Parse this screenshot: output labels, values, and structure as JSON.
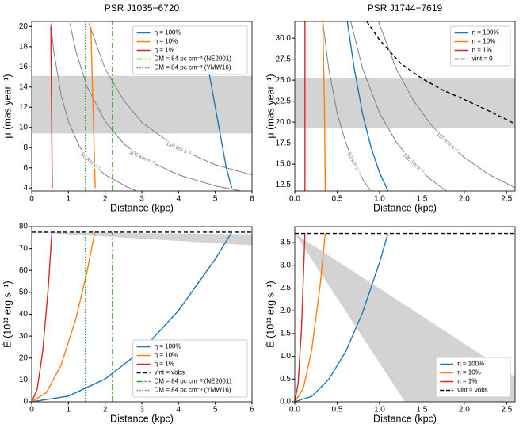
{
  "chart_data": [
    {
      "type": "line",
      "title": "PSR J1035−6720",
      "xlabel": "Distance (kpc)",
      "ylabel": "μ (mas year⁻¹)",
      "xlim": [
        0,
        6
      ],
      "ylim": [
        3.7,
        20.5
      ],
      "xticks": [
        0,
        1,
        2,
        3,
        4,
        5,
        6
      ],
      "yticks": [
        4,
        6,
        8,
        10,
        12,
        14,
        16,
        18,
        20
      ],
      "legend": "upper right",
      "band": [
        9.4,
        15.1
      ],
      "series": [
        {
          "name": "η = 100%",
          "color": "#1f77b4",
          "dash": "solid",
          "x": [
            5.45,
            5.3,
            5.15,
            5.0,
            4.85,
            4.6
          ],
          "values": [
            4,
            6,
            9,
            12,
            15,
            20
          ]
        },
        {
          "name": "η = 10%",
          "color": "#ff7f0e",
          "dash": "solid",
          "x": [
            1.73,
            1.7,
            1.67,
            1.64,
            1.61
          ],
          "values": [
            4,
            8,
            12,
            16,
            20
          ]
        },
        {
          "name": "η = 1%",
          "color": "#d62728",
          "dash": "solid",
          "x": [
            0.56,
            0.55,
            0.54,
            0.53,
            0.52
          ],
          "values": [
            4,
            8,
            12,
            16,
            20
          ]
        },
        {
          "name": "DM = 84 pc cm⁻³ (NE2001)",
          "color": "#2ca02c",
          "dash": "dashdot",
          "x": [
            2.2,
            2.2
          ],
          "values": [
            3.7,
            20.5
          ]
        },
        {
          "name": "DM = 84 pc cm⁻³ (YMW16)",
          "color": "#2ca02c",
          "dash": "dotted",
          "x": [
            1.46,
            1.46
          ],
          "values": [
            3.7,
            20.5
          ]
        }
      ],
      "contours": [
        {
          "label": "50 km s⁻¹",
          "x": [
            0.52,
            0.6,
            0.8,
            1.0,
            1.3,
            1.6,
            2.0,
            2.6,
            2.85
          ],
          "values": [
            20.3,
            17.6,
            13.2,
            10.6,
            8.1,
            6.6,
            5.3,
            4.1,
            3.7
          ]
        },
        {
          "label": "100 km s⁻¹",
          "x": [
            1.04,
            1.2,
            1.5,
            2,
            2.5,
            3,
            4,
            5,
            5.7
          ],
          "values": [
            20.3,
            17.6,
            14.1,
            10.6,
            8.4,
            7.0,
            5.3,
            4.2,
            3.7
          ]
        },
        {
          "label": "150 km s⁻¹",
          "x": [
            1.56,
            2,
            2.5,
            3,
            4,
            5,
            6
          ],
          "values": [
            20.3,
            15.8,
            12.7,
            10.5,
            7.9,
            6.3,
            5.3
          ]
        }
      ]
    },
    {
      "type": "line",
      "title": "PSR J1744−7619",
      "xlabel": "Distance (kpc)",
      "ylabel": "μ (mas year⁻¹)",
      "xlim": [
        0,
        2.6
      ],
      "ylim": [
        11.8,
        32
      ],
      "xticks": [
        {
          "value": 0,
          "label": "0.0"
        },
        0.5,
        {
          "value": 1,
          "label": "1.0"
        },
        1.5,
        {
          "value": 2,
          "label": "2.0"
        },
        2.5
      ],
      "yticks": [
        12.5,
        {
          "value": 15,
          "label": "15.0"
        },
        17.5,
        {
          "value": 20,
          "label": "20.0"
        },
        22.5,
        {
          "value": 25,
          "label": "25.0"
        },
        27.5,
        {
          "value": 30,
          "label": "30.0"
        }
      ],
      "legend": "upper right",
      "band": [
        19.3,
        25.2
      ],
      "series": [
        {
          "name": "η = 100%",
          "color": "#1f77b4",
          "dash": "solid",
          "x": [
            0.62,
            0.7,
            0.8,
            0.9,
            1.0,
            1.1
          ],
          "values": [
            32,
            26.5,
            21,
            17,
            14,
            11.8
          ]
        },
        {
          "name": "η = 10%",
          "color": "#ff7f0e",
          "dash": "solid",
          "x": [
            0.33,
            0.35,
            0.36
          ],
          "values": [
            32,
            22,
            11.8
          ]
        },
        {
          "name": "η = 1%",
          "color": "#d62728",
          "dash": "solid",
          "x": [
            0.12,
            0.12
          ],
          "values": [
            32,
            11.8
          ]
        },
        {
          "name": "ν̇int = 0",
          "color": "#000000",
          "dash": "dashed",
          "x": [
            0.85,
            1.0,
            1.25,
            1.5,
            1.75,
            2.0,
            2.3,
            2.6
          ],
          "values": [
            32,
            29.8,
            27.0,
            25.2,
            23.8,
            22.7,
            21.3,
            19.8
          ]
        }
      ],
      "contours": [
        {
          "label": "50 km s⁻¹",
          "x": [
            0.33,
            0.4,
            0.5,
            0.6,
            0.7,
            0.8,
            0.89
          ],
          "values": [
            32,
            26.4,
            21.1,
            17.6,
            15.1,
            13.2,
            11.9
          ]
        },
        {
          "label": "100 km s⁻¹",
          "x": [
            0.66,
            0.8,
            1.0,
            1.2,
            1.4,
            1.6,
            1.79
          ],
          "values": [
            32,
            26.4,
            21.1,
            17.6,
            15.1,
            13.2,
            11.8
          ]
        },
        {
          "label": "150 km s⁻¹",
          "x": [
            0.99,
            1.2,
            1.4,
            1.6,
            1.8,
            2.0,
            2.3,
            2.6
          ],
          "values": [
            31.9,
            26.3,
            22.6,
            19.8,
            17.6,
            15.8,
            13.7,
            12.2
          ]
        }
      ]
    },
    {
      "type": "line",
      "xlabel": "Distance (kpc)",
      "ylabel": "Ė (10³³ erg s⁻¹)",
      "xlim": [
        0,
        6
      ],
      "ylim": [
        0,
        80
      ],
      "xticks": [
        0,
        1,
        2,
        3,
        4,
        5,
        6
      ],
      "yticks": [
        0,
        10,
        20,
        30,
        40,
        50,
        60,
        70,
        80
      ],
      "legend": "lower right",
      "shade": {
        "x": [
          0,
          6
        ],
        "upper": [
          77.5,
          76.5
        ],
        "lower": [
          77.5,
          71.5
        ]
      },
      "series": [
        {
          "name": "η = 100%",
          "color": "#1f77b4",
          "dash": "solid",
          "x": [
            0,
            1,
            2,
            3,
            4,
            5,
            5.45
          ],
          "values": [
            0,
            2.6,
            10.4,
            23.5,
            41.7,
            65.2,
            77.5
          ]
        },
        {
          "name": "η = 10%",
          "color": "#ff7f0e",
          "dash": "solid",
          "x": [
            0,
            0.4,
            0.8,
            1.2,
            1.5,
            1.72
          ],
          "values": [
            0,
            4.2,
            16.8,
            37.7,
            58.9,
            77.5
          ]
        },
        {
          "name": "η = 1%",
          "color": "#d62728",
          "dash": "solid",
          "x": [
            0,
            0.15,
            0.3,
            0.45,
            0.55
          ],
          "values": [
            0,
            5.8,
            23.1,
            51.9,
            77.5
          ]
        },
        {
          "name": "ν̇int = ν̇obs",
          "color": "#000000",
          "dash": "dashed",
          "x": [
            0,
            6
          ],
          "values": [
            77.5,
            77.5
          ]
        },
        {
          "name": "DM = 84 pc cm⁻³ (NE2001)",
          "color": "#2ca02c",
          "dash": "dashdot",
          "x": [
            2.2,
            2.2
          ],
          "values": [
            0,
            77.5
          ]
        },
        {
          "name": "DM = 84 pc cm⁻³ (YMW16)",
          "color": "#2ca02c",
          "dash": "dotted",
          "x": [
            1.46,
            1.46
          ],
          "values": [
            0,
            77.5
          ]
        }
      ]
    },
    {
      "type": "line",
      "xlabel": "Distance (kpc)",
      "ylabel": "Ė (10³³ erg s⁻¹)",
      "xlim": [
        0,
        2.6
      ],
      "ylim": [
        0,
        3.85
      ],
      "xticks": [
        {
          "value": 0,
          "label": "0.0"
        },
        0.5,
        {
          "value": 1,
          "label": "1.0"
        },
        1.5,
        {
          "value": 2,
          "label": "2.0"
        },
        2.5
      ],
      "yticks": [
        {
          "value": 0,
          "label": "0.0"
        },
        0.5,
        {
          "value": 1,
          "label": "1.0"
        },
        1.5,
        {
          "value": 2,
          "label": "2.0"
        },
        2.5,
        {
          "value": 3,
          "label": "3.0"
        },
        3.5
      ],
      "legend": "lower right",
      "shade": {
        "x": [
          0,
          1.3,
          2.6
        ],
        "upper": [
          3.7,
          2.13,
          0.55
        ],
        "lower": [
          3.7,
          0,
          0
        ]
      },
      "series": [
        {
          "name": "η = 100%",
          "color": "#1f77b4",
          "dash": "solid",
          "x": [
            0,
            0.2,
            0.4,
            0.6,
            0.8,
            1.0,
            1.1
          ],
          "values": [
            0,
            0.12,
            0.49,
            1.1,
            1.96,
            3.06,
            3.7
          ]
        },
        {
          "name": "η = 10%",
          "color": "#ff7f0e",
          "dash": "solid",
          "x": [
            0,
            0.1,
            0.2,
            0.3,
            0.36
          ],
          "values": [
            0,
            0.29,
            1.14,
            2.57,
            3.7
          ]
        },
        {
          "name": "η = 1%",
          "color": "#d62728",
          "dash": "solid",
          "x": [
            0,
            0.04,
            0.08,
            0.12
          ],
          "values": [
            0,
            0.41,
            1.64,
            3.7
          ]
        },
        {
          "name": "ν̇int = ν̇obs",
          "color": "#000000",
          "dash": "dashed",
          "x": [
            0,
            2.6
          ],
          "values": [
            3.7,
            3.7
          ]
        }
      ]
    }
  ]
}
